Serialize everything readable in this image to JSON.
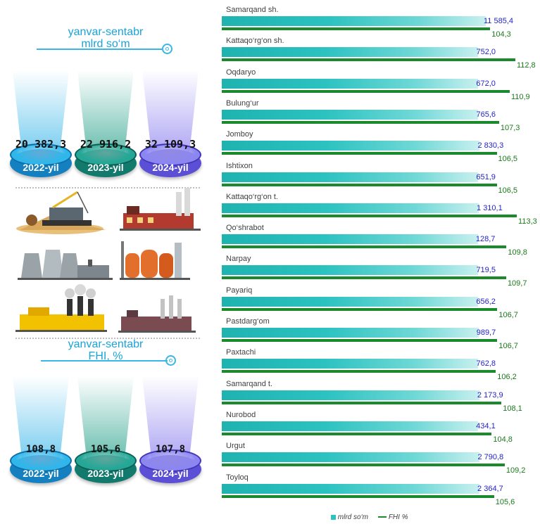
{
  "left_panel": {
    "top_caption_line1": "yanvar-sentabr",
    "top_caption_line2": "mlrd so‘m",
    "bottom_caption_line1": "yanvar-sentabr",
    "bottom_caption_line2": "FHI, %",
    "volume": [
      {
        "year": "2022-yil",
        "value": "20 382,3"
      },
      {
        "year": "2023-yil",
        "value": "22 916,2"
      },
      {
        "year": "2024-yil",
        "value": "32 109,3"
      }
    ],
    "index": [
      {
        "year": "2022-yil",
        "value": "108,8"
      },
      {
        "year": "2023-yil",
        "value": "105,6"
      },
      {
        "year": "2024-yil",
        "value": "107,8"
      }
    ],
    "illustrations": [
      "mining-excavator-icon",
      "brick-factory-icon",
      "power-plant-cooling-towers-icon",
      "refinery-tanks-icon",
      "yellow-factory-smoke-icon",
      "chemical-plant-icon"
    ]
  },
  "chart_data": {
    "type": "bar",
    "orientation": "horizontal",
    "categories": [
      "Samarqand sh.",
      "Kattaqo‘rg‘on sh.",
      "Oqdaryo",
      "Bulung‘ur",
      "Jomboy",
      "Ishtixon",
      "Kattaqo‘rg‘on t.",
      "Qo‘shrabot",
      "Narpay",
      "Payariq",
      "Pastdarg‘om",
      "Paxtachi",
      "Samarqand t.",
      "Nurobod",
      "Urgut",
      "Toyloq"
    ],
    "series": [
      {
        "name": "mlrd so‘m",
        "values": [
          11585.4,
          752.0,
          672.0,
          765.6,
          2830.3,
          651.9,
          1310.1,
          128.7,
          719.5,
          656.2,
          989.7,
          762.8,
          2173.9,
          434.1,
          2790.8,
          2364.7
        ],
        "labels": [
          "11 585,4",
          "752,0",
          "672,0",
          "765,6",
          "2 830,3",
          "651,9",
          "1 310,1",
          "128,7",
          "719,5",
          "656,2",
          "989,7",
          "762,8",
          "2 173,9",
          "434,1",
          "2 790,8",
          "2 364,7"
        ]
      },
      {
        "name": "FHI %",
        "values": [
          104.3,
          112.8,
          110.9,
          107.3,
          106.5,
          106.5,
          113.3,
          109.8,
          109.7,
          106.7,
          106.7,
          106.2,
          108.1,
          104.8,
          109.2,
          105.6
        ],
        "labels": [
          "104,3",
          "112,8",
          "110,9",
          "107,3",
          "106,5",
          "106,5",
          "113,3",
          "109,8",
          "109,7",
          "106,7",
          "106,7",
          "106,2",
          "108,1",
          "104,8",
          "109,2",
          "105,6"
        ]
      }
    ],
    "legend_position": "bottom",
    "colors": {
      "volume": "#2bc2c0",
      "index": "#1b8a2c",
      "volume_label": "#2323c8",
      "index_label": "#1b7a1b"
    }
  }
}
